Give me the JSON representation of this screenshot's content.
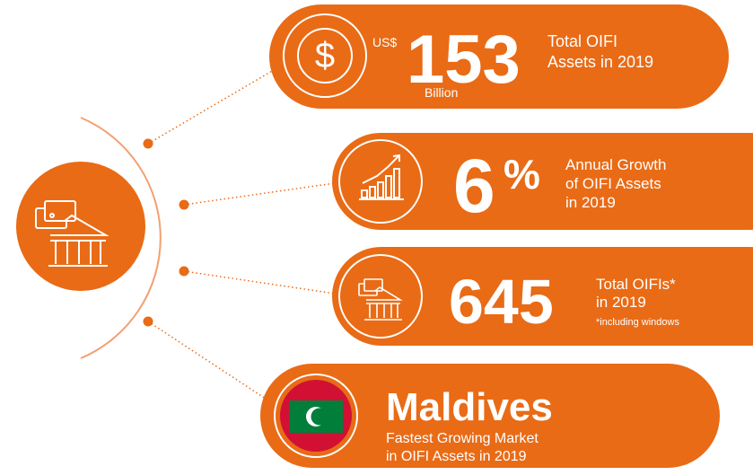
{
  "cards": [
    {
      "prefix": "US$",
      "value": "153",
      "unit": "Billion",
      "description": [
        "Total OIFI",
        "Assets in 2019"
      ]
    },
    {
      "value": "6",
      "unit": "%",
      "description": [
        "Annual Growth",
        "of OIFI Assets",
        "in 2019"
      ]
    },
    {
      "value": "645",
      "description": [
        "Total OIFIs*",
        "in 2019"
      ],
      "footnote": "*including windows"
    },
    {
      "value": "Maldives",
      "description": [
        "Fastest Growing Market",
        "in OIFI Assets in 2019"
      ]
    }
  ]
}
